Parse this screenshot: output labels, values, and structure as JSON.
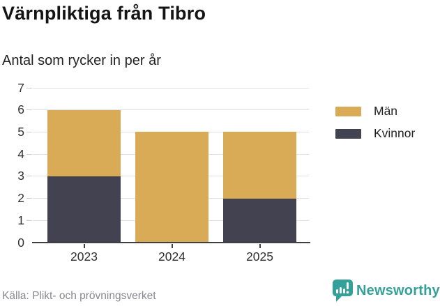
{
  "header": {
    "title": "Värnpliktiga från Tibro",
    "subtitle": "Antal som rycker in per år"
  },
  "legend": {
    "position": "right",
    "items": [
      {
        "label": "Män",
        "color": "#d9ab57"
      },
      {
        "label": "Kvinnor",
        "color": "#434250"
      }
    ]
  },
  "footer": {
    "source": "Källa: Plikt- och prövningsverket",
    "brand_name": "Newsworthy",
    "brand_color": "#35a09a",
    "brand_icon": "bar-chart-speech-bubble-icon"
  },
  "colors": {
    "men": "#d9ab57",
    "women": "#434250",
    "grid": "#e2e2e5",
    "axis": "#3f3f42",
    "y_tick": "#cfcfd3",
    "axis_text": "#333333",
    "source_text": "#87878f",
    "background": "#ffffff"
  },
  "chart_data": {
    "type": "bar",
    "stacked": true,
    "title": "Värnpliktiga från Tibro",
    "subtitle": "Antal som rycker in per år",
    "categories": [
      "2023",
      "2024",
      "2025"
    ],
    "series": [
      {
        "name": "Kvinnor",
        "color": "#434250",
        "values": [
          3,
          0,
          2
        ]
      },
      {
        "name": "Män",
        "color": "#d9ab57",
        "values": [
          3,
          5,
          3
        ]
      }
    ],
    "totals": [
      6,
      5,
      5
    ],
    "xlabel": "",
    "ylabel": "",
    "ylim": [
      0,
      7
    ],
    "yticks": [
      0,
      1,
      2,
      3,
      4,
      5,
      6,
      7
    ],
    "grid": true,
    "legend_position": "right",
    "source": "Källa: Plikt- och prövningsverket"
  }
}
